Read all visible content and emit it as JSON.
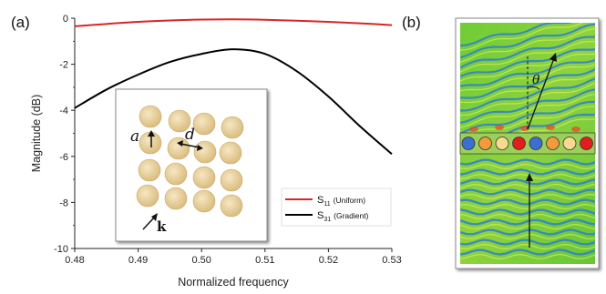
{
  "panel_labels": {
    "a": "(a)",
    "b": "(b)"
  },
  "chart_data": {
    "type": "line",
    "title": "",
    "xlabel": "Normalized frequency",
    "ylabel": "Magnitude (dB)",
    "xlim": [
      0.48,
      0.53
    ],
    "ylim": [
      -10,
      0
    ],
    "x_ticks": [
      "0.48",
      "0.49",
      "0.50",
      "0.51",
      "0.52",
      "0.53"
    ],
    "y_ticks": [
      "0",
      "-2",
      "-4",
      "-6",
      "-8",
      "-10"
    ],
    "grid": false,
    "legend_position": "bottom-right",
    "series": [
      {
        "name": "S11",
        "sub": "11",
        "note": "(Uniform)",
        "color": "#d62728",
        "x": [
          0.48,
          0.485,
          0.49,
          0.495,
          0.5,
          0.505,
          0.51,
          0.515,
          0.52,
          0.525,
          0.53
        ],
        "y": [
          -0.35,
          -0.25,
          -0.16,
          -0.1,
          -0.06,
          -0.05,
          -0.07,
          -0.11,
          -0.16,
          -0.22,
          -0.3
        ]
      },
      {
        "name": "S31",
        "sub": "31",
        "note": "(Gradient)",
        "color": "#000000",
        "x": [
          0.48,
          0.485,
          0.49,
          0.495,
          0.5,
          0.505,
          0.51,
          0.515,
          0.52,
          0.525,
          0.53
        ],
        "y": [
          -3.9,
          -3.1,
          -2.45,
          -1.9,
          -1.55,
          -1.35,
          -1.55,
          -2.3,
          -3.4,
          -4.7,
          -5.9
        ]
      }
    ]
  },
  "inset": {
    "label_a": "a",
    "label_d": "d",
    "label_k": "k"
  },
  "colors": {
    "sphere_fill": "#e6cc95",
    "field_green": "#77cd3c",
    "field_blue": "#2f7fd0",
    "strip_circles": [
      "#3c6fd1",
      "#f39a3c",
      "#f7d98f",
      "#e31d1d",
      "#3c6fd1",
      "#f39a3c",
      "#f7d98f",
      "#e31d1d"
    ]
  },
  "panel_b": {
    "angle_label": "θ"
  }
}
